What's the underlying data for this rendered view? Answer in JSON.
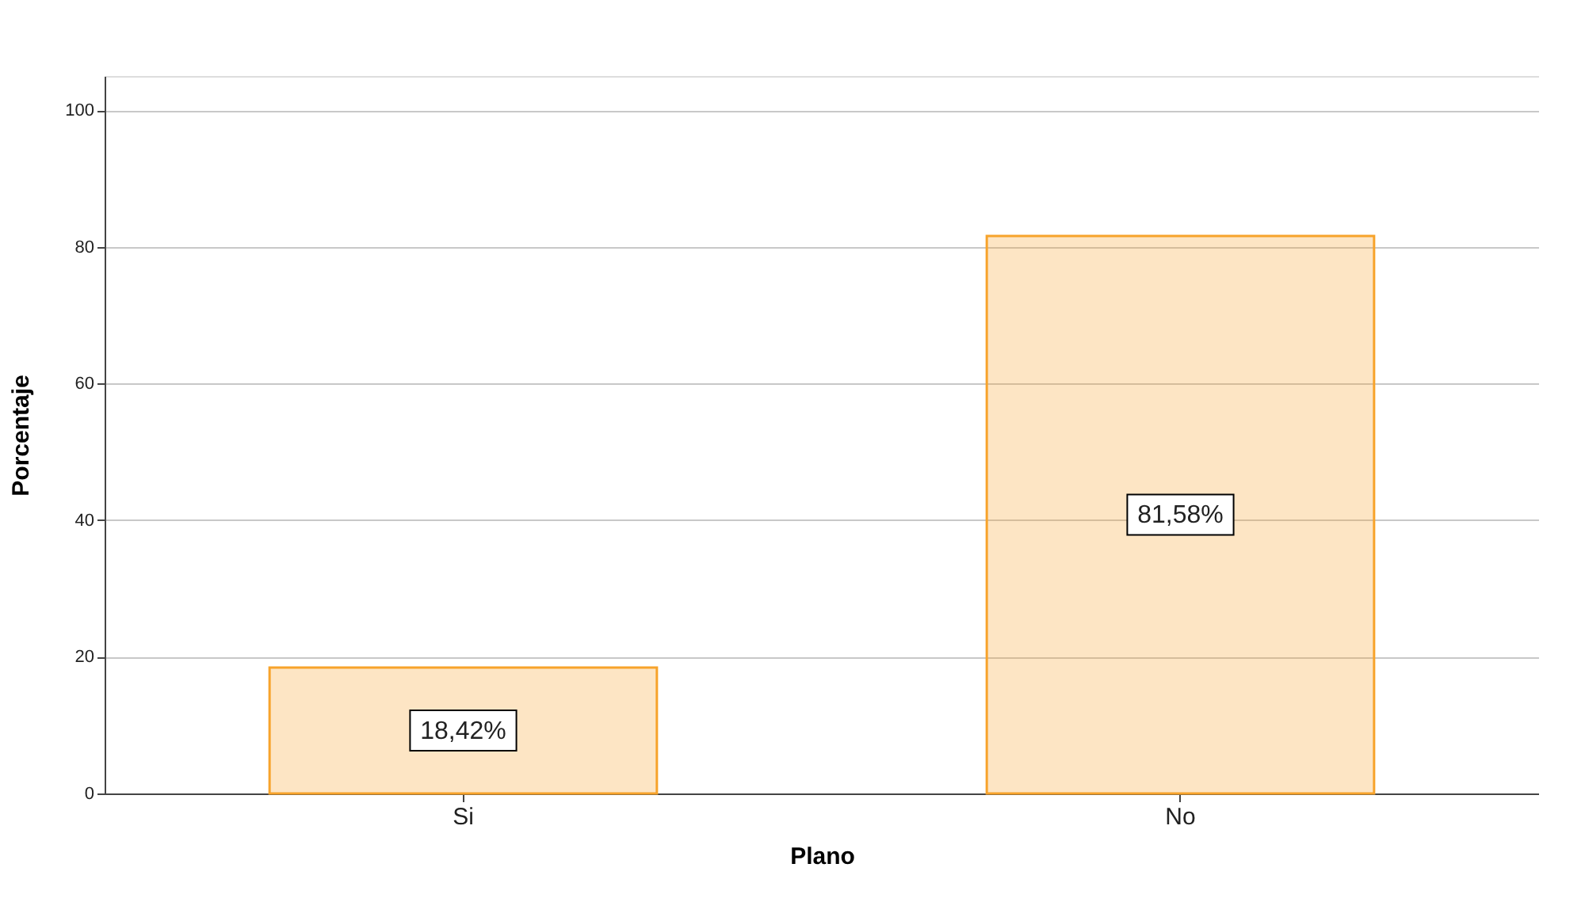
{
  "chart_data": {
    "type": "bar",
    "xlabel": "Plano",
    "ylabel": "Porcentaje",
    "categories": [
      "Si",
      "No"
    ],
    "values": [
      18.42,
      81.58
    ],
    "value_labels": [
      "18,42%",
      "81,58%"
    ],
    "color": "#f7a32b",
    "ylim": [
      0,
      105
    ],
    "yticks": [
      0,
      20,
      40,
      60,
      80,
      100
    ],
    "grid": "y"
  }
}
